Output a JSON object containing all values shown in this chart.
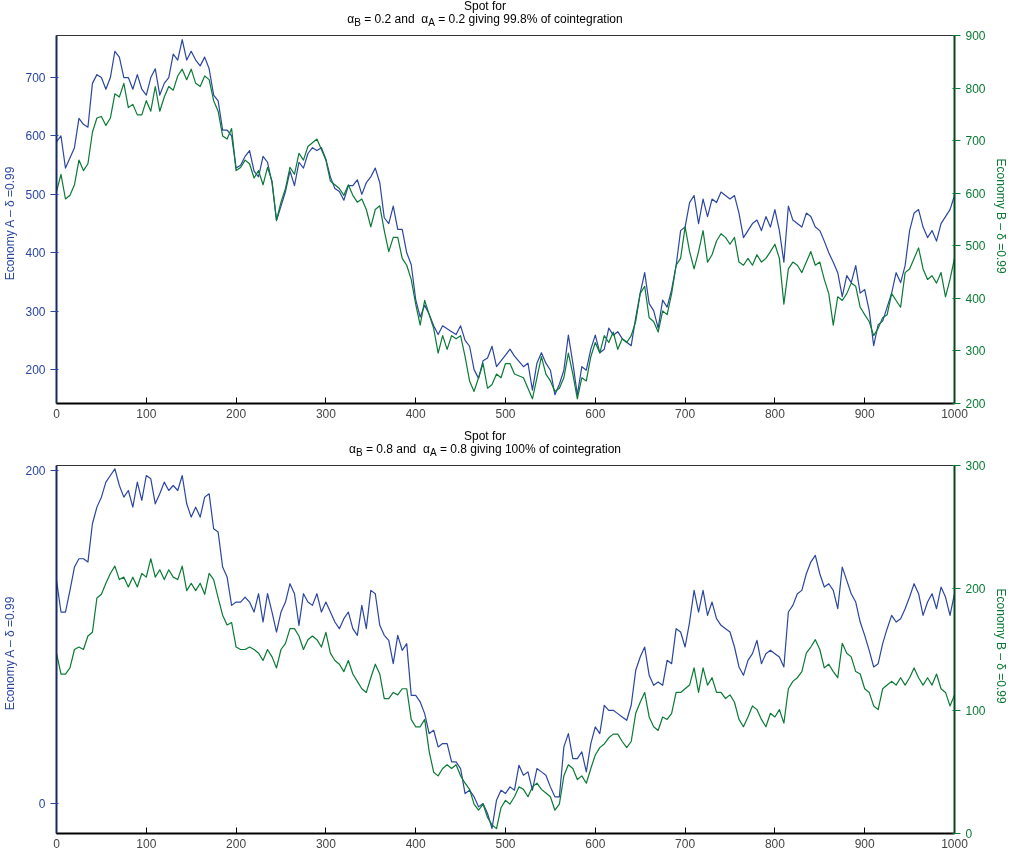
{
  "chart_data": [
    {
      "type": "line",
      "title": "Spot for",
      "subtitle": "α$_{B}$ = 0.2 and   α$_{A}$ = 0.2 giving 99.8% of cointegration",
      "ylabel": "Economy A –   δ =0.99",
      "y2label": "Economy B –   δ =0.99",
      "xlim": [
        0,
        1000
      ],
      "xticks": [
        0,
        100,
        200,
        300,
        400,
        500,
        600,
        700,
        800,
        900,
        1000
      ],
      "ylim": [
        142,
        772
      ],
      "yticks": [
        200,
        300,
        400,
        500,
        600,
        700
      ],
      "y2lim": [
        200,
        900
      ],
      "y2ticks": [
        200,
        300,
        400,
        500,
        600,
        700,
        800,
        900
      ],
      "series": [
        {
          "color": "#2b46a0",
          "x": [
            0,
            5,
            10,
            20,
            25,
            30,
            35,
            40,
            45,
            50,
            55,
            60,
            65,
            70,
            75,
            80,
            85,
            90,
            95,
            100,
            105,
            110,
            115,
            120,
            125,
            130,
            135,
            140,
            145,
            150,
            155,
            160,
            165,
            170,
            175,
            180,
            185,
            190,
            195,
            200,
            205,
            210,
            215,
            220,
            225,
            230,
            235,
            240,
            245,
            250,
            255,
            260,
            265,
            270,
            275,
            280,
            285,
            290,
            295,
            300,
            305,
            310,
            315,
            320,
            325,
            330,
            335,
            340,
            345,
            350,
            355,
            360,
            365,
            370,
            375,
            380,
            385,
            390,
            395,
            400,
            405,
            410,
            415,
            420,
            425,
            430,
            435,
            440,
            445,
            450,
            455,
            460,
            465,
            470,
            475,
            480,
            485,
            490,
            495,
            500,
            505,
            510,
            520,
            525,
            530,
            535,
            540,
            545,
            550,
            555,
            560,
            565,
            570,
            575,
            580,
            585,
            590,
            595,
            600,
            605,
            610,
            615,
            620,
            625,
            630,
            635,
            640,
            645,
            650,
            655,
            660,
            665,
            670,
            675,
            680,
            685,
            690,
            695,
            700,
            705,
            710,
            715,
            720,
            725,
            730,
            735,
            740,
            745,
            750,
            755,
            760,
            765,
            770,
            775,
            780,
            785,
            790,
            795,
            800,
            805,
            810,
            815,
            820,
            825,
            830,
            835,
            840,
            845,
            850,
            855,
            860,
            865,
            870,
            875,
            880,
            885,
            890,
            895,
            900,
            905,
            910,
            915,
            920,
            925,
            930,
            935,
            940,
            945,
            950,
            955,
            960,
            965,
            970,
            975,
            980,
            985,
            990,
            995,
            1000
          ],
          "values": [
            590,
            600,
            545,
            580,
            630,
            620,
            615,
            690,
            705,
            700,
            680,
            700,
            745,
            735,
            700,
            700,
            680,
            705,
            680,
            670,
            700,
            715,
            670,
            690,
            700,
            740,
            730,
            765,
            730,
            745,
            730,
            720,
            735,
            715,
            670,
            660,
            610,
            610,
            600,
            545,
            550,
            565,
            575,
            540,
            530,
            565,
            555,
            520,
            455,
            480,
            505,
            540,
            515,
            555,
            545,
            570,
            580,
            575,
            580,
            560,
            530,
            510,
            505,
            490,
            515,
            515,
            525,
            500,
            520,
            530,
            545,
            520,
            460,
            450,
            480,
            440,
            440,
            400,
            380,
            320,
            290,
            310,
            295,
            275,
            260,
            275,
            270,
            265,
            260,
            275,
            250,
            240,
            200,
            185,
            215,
            220,
            240,
            205,
            215,
            225,
            235,
            223,
            205,
            211,
            165,
            211,
            229,
            211,
            199,
            157,
            175,
            199,
            259,
            211,
            157,
            205,
            199,
            235,
            259,
            229,
            235,
            271,
            259,
            265,
            253,
            247,
            241,
            289,
            331,
            366,
            313,
            301,
            271,
            319,
            307,
            337,
            378,
            438,
            444,
            486,
            498,
            450,
            492,
            462,
            492,
            486,
            504,
            498,
            492,
            498,
            468,
            426,
            438,
            450,
            456,
            438,
            462,
            444,
            474,
            438,
            384,
            480,
            456,
            450,
            444,
            468,
            462,
            444,
            438,
            420,
            400,
            384,
            366,
            325,
            361,
            349,
            378,
            331,
            337,
            301,
            241,
            277,
            283,
            307,
            331,
            366,
            349,
            378,
            438,
            468,
            474,
            444,
            426,
            438,
            420,
            450,
            462,
            474,
            498
          ]
        },
        {
          "color": "#0a7a35",
          "axis": "y2",
          "x": [
            0,
            5,
            10,
            15,
            20,
            25,
            30,
            35,
            40,
            45,
            50,
            55,
            60,
            65,
            70,
            75,
            80,
            85,
            90,
            95,
            100,
            105,
            110,
            115,
            120,
            125,
            130,
            135,
            140,
            145,
            150,
            155,
            160,
            165,
            170,
            175,
            180,
            185,
            190,
            195,
            200,
            205,
            210,
            215,
            220,
            225,
            230,
            235,
            240,
            245,
            250,
            255,
            260,
            265,
            270,
            275,
            280,
            285,
            290,
            295,
            300,
            305,
            310,
            315,
            320,
            325,
            330,
            335,
            340,
            345,
            350,
            355,
            360,
            365,
            370,
            375,
            380,
            385,
            390,
            395,
            400,
            405,
            410,
            415,
            420,
            425,
            430,
            435,
            440,
            445,
            450,
            455,
            460,
            465,
            470,
            475,
            480,
            485,
            490,
            495,
            500,
            505,
            510,
            520,
            530,
            540,
            545,
            550,
            555,
            560,
            565,
            570,
            575,
            580,
            585,
            590,
            595,
            600,
            605,
            610,
            615,
            620,
            625,
            630,
            635,
            640,
            645,
            650,
            655,
            660,
            665,
            670,
            675,
            680,
            685,
            690,
            695,
            700,
            705,
            710,
            715,
            720,
            725,
            730,
            735,
            740,
            745,
            750,
            755,
            760,
            765,
            770,
            775,
            780,
            785,
            790,
            795,
            800,
            805,
            810,
            815,
            820,
            825,
            830,
            835,
            840,
            845,
            850,
            855,
            860,
            865,
            870,
            875,
            880,
            885,
            890,
            895,
            900,
            905,
            910,
            915,
            920,
            925,
            930,
            935,
            940,
            945,
            950,
            955,
            960,
            965,
            970,
            975,
            980,
            985,
            990,
            995,
            1000
          ],
          "values": [
            603,
            636,
            589,
            596,
            616,
            663,
            643,
            656,
            716,
            743,
            746,
            729,
            743,
            789,
            783,
            809,
            763,
            769,
            749,
            749,
            776,
            756,
            803,
            756,
            783,
            803,
            796,
            823,
            836,
            816,
            836,
            809,
            803,
            823,
            816,
            776,
            756,
            709,
            703,
            723,
            643,
            649,
            663,
            656,
            629,
            643,
            616,
            649,
            623,
            549,
            583,
            609,
            649,
            636,
            676,
            663,
            689,
            696,
            703,
            683,
            663,
            623,
            616,
            609,
            596,
            616,
            596,
            583,
            589,
            569,
            536,
            569,
            576,
            529,
            489,
            516,
            516,
            476,
            463,
            436,
            389,
            349,
            396,
            369,
            343,
            296,
            329,
            303,
            329,
            323,
            329,
            289,
            243,
            223,
            249,
            276,
            229,
            236,
            256,
            249,
            276,
            276,
            256,
            249,
            209,
            289,
            256,
            243,
            223,
            229,
            249,
            296,
            256,
            209,
            249,
            243,
            289,
            316,
            296,
            329,
            316,
            336,
            303,
            323,
            316,
            329,
            356,
            409,
            423,
            363,
            356,
            336,
            376,
            369,
            409,
            463,
            476,
            536,
            489,
            456,
            489,
            529,
            469,
            483,
            509,
            523,
            516,
            503,
            516,
            469,
            463,
            476,
            463,
            483,
            469,
            476,
            489,
            503,
            476,
            389,
            456,
            469,
            463,
            449,
            469,
            489,
            463,
            469,
            436,
            409,
            349,
            403,
            396,
            409,
            429,
            423,
            383,
            369,
            356,
            329,
            343,
            363,
            369,
            409,
            396,
            383,
            449,
            456,
            476,
            496,
            456,
            436,
            443,
            429,
            449,
            403,
            436,
            476
          ]
        }
      ]
    },
    {
      "type": "line",
      "title": "Spot for",
      "subtitle": "α$_{B}$ = 0.8 and   α$_{A}$ = 0.8 giving 100% of cointegration",
      "ylabel": "Economy A –   δ =0.99",
      "y2label": "Economy B –   δ =0.99",
      "xlim": [
        0,
        1000
      ],
      "xticks": [
        0,
        100,
        200,
        300,
        400,
        500,
        600,
        700,
        800,
        900,
        1000
      ],
      "ylim": [
        -18,
        203
      ],
      "yticks": [
        0,
        200
      ],
      "y2lim": [
        0,
        300
      ],
      "y2ticks": [
        0,
        100,
        200,
        300
      ],
      "series": [
        {
          "color": "#2b46a0",
          "x": [
            0,
            5,
            10,
            15,
            20,
            25,
            30,
            35,
            40,
            45,
            50,
            55,
            60,
            65,
            70,
            75,
            80,
            85,
            90,
            95,
            100,
            105,
            110,
            115,
            120,
            125,
            130,
            135,
            140,
            145,
            150,
            155,
            160,
            165,
            170,
            175,
            180,
            185,
            190,
            195,
            200,
            205,
            210,
            215,
            220,
            225,
            230,
            235,
            240,
            245,
            250,
            255,
            260,
            265,
            270,
            275,
            280,
            285,
            290,
            295,
            300,
            305,
            310,
            315,
            320,
            325,
            330,
            335,
            340,
            345,
            350,
            355,
            360,
            365,
            370,
            375,
            380,
            385,
            390,
            395,
            400,
            405,
            410,
            415,
            420,
            425,
            430,
            435,
            440,
            445,
            450,
            455,
            460,
            465,
            470,
            475,
            480,
            485,
            490,
            495,
            500,
            505,
            510,
            515,
            520,
            525,
            530,
            535,
            540,
            545,
            550,
            555,
            560,
            565,
            570,
            575,
            580,
            585,
            590,
            595,
            600,
            605,
            610,
            615,
            620,
            625,
            630,
            635,
            640,
            645,
            650,
            655,
            660,
            665,
            670,
            675,
            680,
            685,
            690,
            695,
            700,
            705,
            710,
            715,
            720,
            725,
            730,
            735,
            740,
            745,
            750,
            755,
            760,
            765,
            770,
            775,
            780,
            785,
            790,
            795,
            800,
            805,
            810,
            815,
            820,
            825,
            830,
            835,
            840,
            845,
            850,
            855,
            860,
            865,
            870,
            875,
            880,
            885,
            890,
            895,
            900,
            905,
            910,
            915,
            920,
            925,
            930,
            935,
            940,
            945,
            950,
            955,
            960,
            965,
            970,
            975,
            980,
            985,
            990,
            995,
            1000
          ],
          "values": [
            134,
            115,
            115,
            128,
            142,
            147,
            147,
            145,
            168,
            178,
            184,
            193,
            197,
            201,
            191,
            184,
            188,
            178,
            193,
            182,
            197,
            195,
            180,
            186,
            193,
            188,
            191,
            188,
            197,
            180,
            172,
            178,
            172,
            184,
            186,
            165,
            163,
            142,
            136,
            119,
            121,
            121,
            124,
            121,
            115,
            126,
            109,
            126,
            115,
            103,
            115,
            121,
            132,
            126,
            107,
            126,
            121,
            119,
            126,
            115,
            121,
            115,
            109,
            105,
            111,
            115,
            105,
            101,
            119,
            105,
            128,
            126,
            107,
            101,
            98,
            84,
            101,
            92,
            96,
            65,
            65,
            61,
            54,
            42,
            44,
            34,
            36,
            36,
            25,
            25,
            21,
            6,
            8,
            4,
            -2,
            0,
            -6,
            -15,
            2,
            8,
            6,
            10,
            8,
            23,
            17,
            19,
            8,
            21,
            19,
            17,
            10,
            4,
            4,
            34,
            42,
            27,
            27,
            31,
            19,
            36,
            46,
            42,
            59,
            56,
            56,
            54,
            52,
            50,
            59,
            80,
            88,
            94,
            77,
            71,
            73,
            71,
            86,
            84,
            105,
            103,
            94,
            109,
            128,
            115,
            128,
            113,
            121,
            111,
            107,
            105,
            103,
            94,
            82,
            77,
            86,
            90,
            98,
            84,
            90,
            92,
            90,
            88,
            82,
            115,
            119,
            126,
            128,
            138,
            145,
            149,
            138,
            130,
            132,
            128,
            117,
            142,
            134,
            126,
            121,
            109,
            101,
            92,
            82,
            84,
            96,
            105,
            113,
            109,
            111,
            117,
            124,
            132,
            126,
            113,
            121,
            126,
            117,
            130,
            124,
            113,
            126
          ]
        },
        {
          "color": "#0a7a35",
          "axis": "y2",
          "x": [
            0,
            5,
            10,
            15,
            20,
            25,
            30,
            35,
            40,
            45,
            50,
            55,
            60,
            65,
            70,
            75,
            80,
            85,
            90,
            95,
            100,
            105,
            110,
            115,
            120,
            125,
            130,
            135,
            140,
            145,
            150,
            155,
            160,
            165,
            170,
            175,
            180,
            185,
            190,
            195,
            200,
            205,
            210,
            215,
            220,
            225,
            230,
            235,
            240,
            245,
            250,
            255,
            260,
            265,
            270,
            275,
            280,
            285,
            290,
            295,
            300,
            305,
            310,
            315,
            320,
            325,
            330,
            335,
            340,
            345,
            350,
            355,
            360,
            365,
            370,
            375,
            380,
            385,
            390,
            395,
            400,
            405,
            410,
            415,
            420,
            425,
            430,
            435,
            440,
            445,
            450,
            455,
            460,
            465,
            470,
            475,
            480,
            485,
            490,
            495,
            500,
            505,
            510,
            515,
            520,
            525,
            530,
            535,
            540,
            545,
            550,
            555,
            560,
            565,
            570,
            575,
            580,
            585,
            590,
            595,
            600,
            605,
            610,
            615,
            620,
            625,
            630,
            635,
            640,
            645,
            650,
            655,
            660,
            665,
            670,
            675,
            680,
            685,
            690,
            695,
            700,
            705,
            710,
            715,
            720,
            725,
            730,
            735,
            740,
            745,
            750,
            755,
            760,
            765,
            770,
            775,
            780,
            785,
            790,
            795,
            800,
            805,
            810,
            815,
            820,
            825,
            830,
            835,
            840,
            845,
            850,
            855,
            860,
            865,
            870,
            875,
            880,
            885,
            890,
            895,
            900,
            905,
            910,
            915,
            920,
            925,
            930,
            935,
            940,
            945,
            950,
            955,
            960,
            965,
            970,
            975,
            980,
            985,
            990,
            995,
            1000
          ],
          "values": [
            147,
            130,
            130,
            135,
            150,
            152,
            150,
            161,
            164,
            192,
            195,
            204,
            212,
            218,
            207,
            209,
            201,
            209,
            201,
            212,
            209,
            224,
            209,
            215,
            207,
            215,
            209,
            207,
            218,
            198,
            204,
            198,
            204,
            195,
            212,
            207,
            192,
            178,
            170,
            172,
            152,
            150,
            150,
            152,
            150,
            147,
            141,
            150,
            144,
            135,
            150,
            155,
            167,
            167,
            161,
            150,
            158,
            161,
            158,
            152,
            164,
            147,
            141,
            138,
            132,
            141,
            130,
            124,
            118,
            115,
            127,
            138,
            130,
            110,
            110,
            115,
            113,
            118,
            118,
            93,
            87,
            87,
            93,
            67,
            50,
            47,
            53,
            56,
            53,
            56,
            47,
            41,
            36,
            24,
            19,
            24,
            13,
            7,
            4,
            21,
            27,
            24,
            30,
            38,
            36,
            30,
            38,
            41,
            36,
            33,
            30,
            19,
            24,
            47,
            56,
            53,
            44,
            47,
            41,
            53,
            64,
            70,
            73,
            78,
            81,
            81,
            75,
            70,
            75,
            98,
            107,
            115,
            95,
            87,
            84,
            95,
            93,
            98,
            115,
            115,
            118,
            121,
            135,
            115,
            135,
            121,
            127,
            115,
            115,
            110,
            113,
            107,
            93,
            87,
            95,
            104,
            101,
            93,
            87,
            98,
            95,
            101,
            90,
            118,
            124,
            127,
            132,
            147,
            152,
            158,
            150,
            135,
            138,
            132,
            127,
            155,
            147,
            144,
            132,
            130,
            118,
            115,
            104,
            101,
            118,
            121,
            124,
            121,
            127,
            121,
            127,
            135,
            127,
            121,
            127,
            121,
            130,
            118,
            115,
            104,
            113
          ]
        }
      ]
    }
  ]
}
